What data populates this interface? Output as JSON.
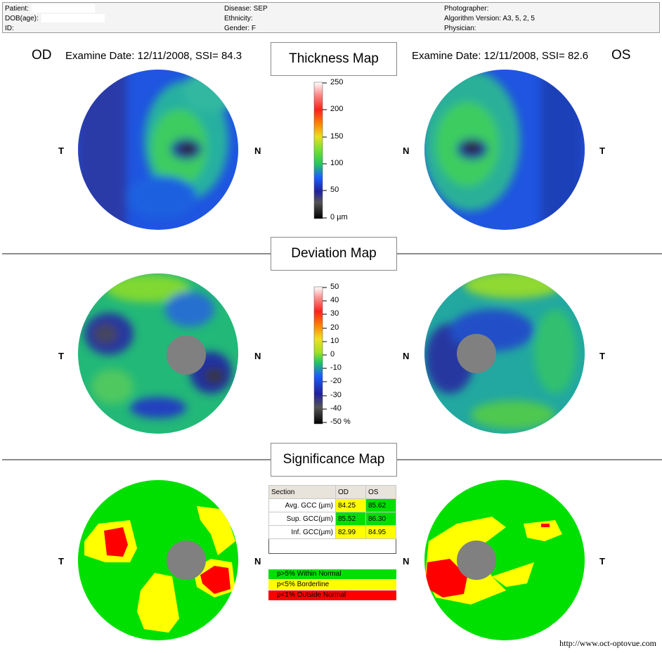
{
  "header": {
    "patient_label": "Patient:",
    "dob_label": "DOB(age):",
    "id_label": "ID:",
    "disease": "Disease: SEP",
    "ethnicity": "Ethnicity:",
    "gender": "Gender: F",
    "photographer": "Photographer:",
    "algorithm": "Algorithm Version: A3, 5, 2, 5",
    "physician": "Physician:"
  },
  "od": {
    "label": "OD",
    "exam": "Examine Date: 12/11/2008, SSI= 84.3"
  },
  "os": {
    "label": "OS",
    "exam": "Examine Date: 12/11/2008, SSI= 82.6"
  },
  "titles": {
    "thickness": "Thickness Map",
    "deviation": "Deviation Map",
    "significance": "Significance Map"
  },
  "sides": {
    "t": "T",
    "n": "N"
  },
  "thickness_scale": [
    "250",
    "200",
    "150",
    "100",
    "50",
    "0 µm"
  ],
  "deviation_scale": [
    "50",
    "40",
    "30",
    "20",
    "10",
    "0",
    "-10",
    "-20",
    "-30",
    "-40",
    "-50 %"
  ],
  "table": {
    "headers": [
      "Section",
      "OD",
      "OS"
    ],
    "rows": [
      {
        "name": "Avg. GCC (µm)",
        "od": "84.25",
        "os": "85.62",
        "od_color": "#ffff00",
        "os_color": "#00e000"
      },
      {
        "name": "Sup. GCC(µm)",
        "od": "85.52",
        "os": "86.30",
        "od_color": "#00e000",
        "os_color": "#00e000"
      },
      {
        "name": "Inf. GCC(µm)",
        "od": "82.99",
        "os": "84.95",
        "od_color": "#ffff00",
        "os_color": "#ffff00"
      }
    ]
  },
  "legend": [
    {
      "text": "p>5% Within Normal",
      "color": "#00e000"
    },
    {
      "text": "p<5% Borderline",
      "color": "#ffff00"
    },
    {
      "text": "p<1% Outside Normal",
      "color": "#ff0000"
    }
  ],
  "url": "http://www.oct-optovue.com"
}
